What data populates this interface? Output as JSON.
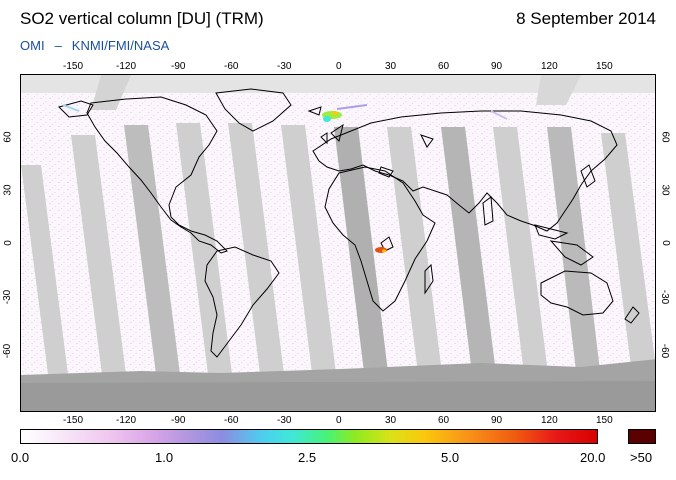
{
  "header": {
    "title": "SO2 vertical column [DU] (TRM)",
    "date": "8 September 2014",
    "credit_left": "OMI",
    "credit_sep": "–",
    "credit_right": "KNMI/FMI/NASA"
  },
  "map": {
    "x_ticks": [
      "-150",
      "-120",
      "-90",
      "-60",
      "-30",
      "0",
      "30",
      "60",
      "90",
      "120",
      "150"
    ],
    "y_ticks": [
      "60",
      "30",
      "0",
      "-30",
      "-60"
    ],
    "colors": {
      "swath_gap": "#c8c8c8",
      "swath_dark": "#a8a8a8",
      "polar_night": "#a0a0a0",
      "coastline": "#000000",
      "hotspot": "#e85010"
    }
  },
  "colorbar": {
    "labels": [
      "0.0",
      "1.0",
      "2.5",
      "5.0",
      "20.0"
    ],
    "over_label": ">50",
    "over_color": "#5a0000"
  }
}
